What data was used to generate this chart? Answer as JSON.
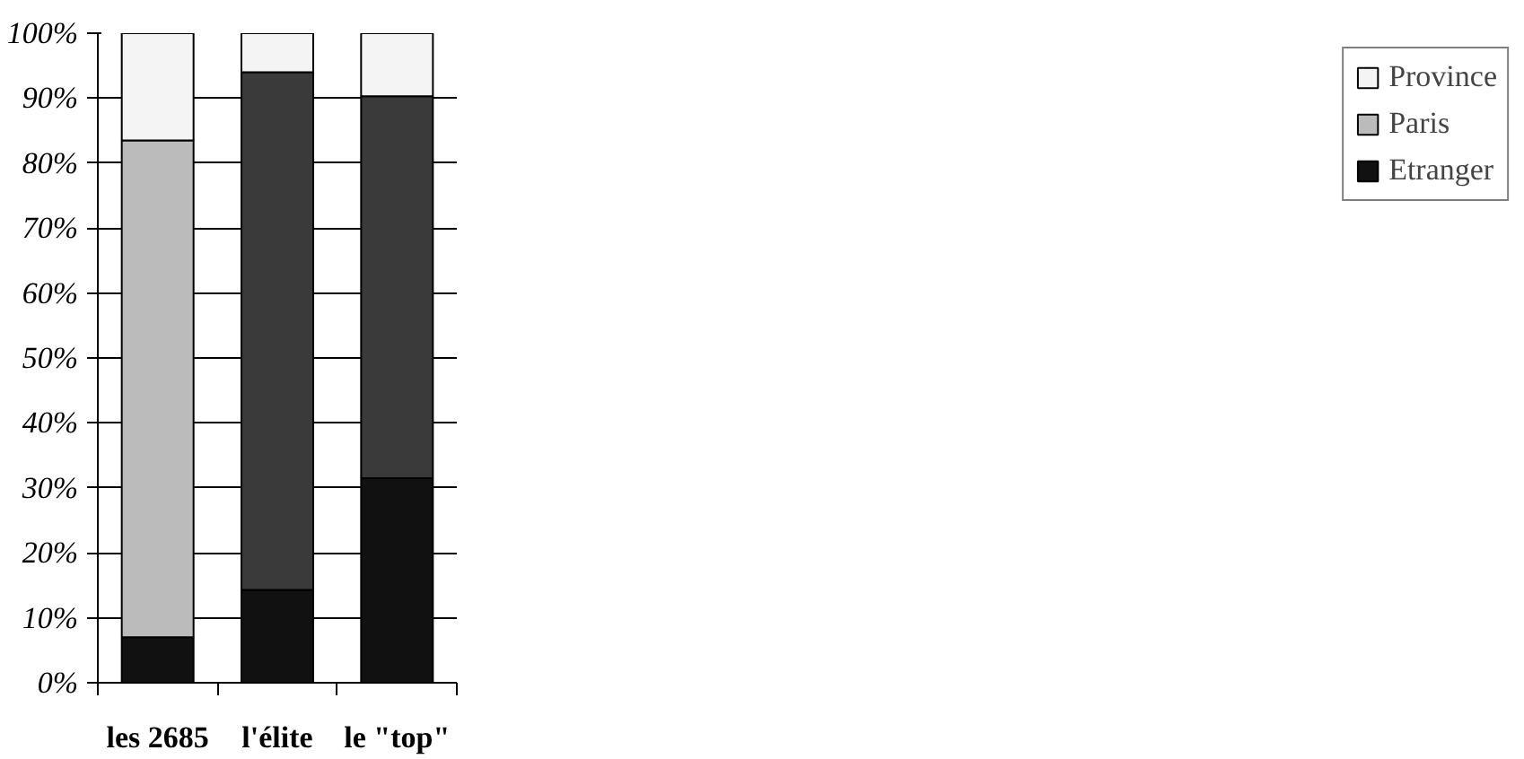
{
  "chart_data": {
    "type": "bar",
    "stacked": true,
    "categories": [
      "les 2685",
      "l'élite",
      "le \"top\""
    ],
    "series": [
      {
        "name": "Etranger",
        "color": "#111111",
        "colors": [
          "#111111",
          "#111111",
          "#111111"
        ],
        "values": [
          7,
          14.3,
          31.5
        ]
      },
      {
        "name": "Paris",
        "color": "#bbbbbb",
        "colors": [
          "#bbbbbb",
          "#3a3a3a",
          "#3a3a3a"
        ],
        "values": [
          76.5,
          79.7,
          58.8
        ]
      },
      {
        "name": "Province",
        "color": "#f4f4f4",
        "colors": [
          "#f4f4f4",
          "#f4f4f4",
          "#f4f4f4"
        ],
        "values": [
          16.5,
          6,
          9.7
        ]
      }
    ],
    "ylim": [
      0,
      100
    ],
    "yticks": [
      {
        "value": 0,
        "label": "0%"
      },
      {
        "value": 10,
        "label": "10%"
      },
      {
        "value": 20,
        "label": "20%"
      },
      {
        "value": 30,
        "label": "30%"
      },
      {
        "value": 40,
        "label": "40%"
      },
      {
        "value": 50,
        "label": "50%"
      },
      {
        "value": 60,
        "label": "60%"
      },
      {
        "value": 70,
        "label": "70%"
      },
      {
        "value": 80,
        "label": "80%"
      },
      {
        "value": 90,
        "label": "90%"
      },
      {
        "value": 100,
        "label": "100%"
      }
    ],
    "grid": "y",
    "legend": "right"
  }
}
